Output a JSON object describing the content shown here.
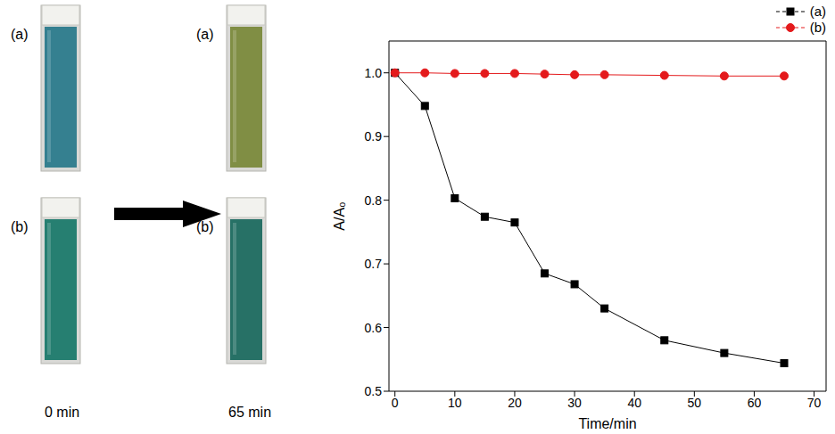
{
  "photos": {
    "panels": [
      {
        "caption": "0 min",
        "cuvettes": [
          "(a)",
          "(b)"
        ]
      },
      {
        "caption": "65 min",
        "cuvettes": [
          "(a)",
          "(b)"
        ]
      }
    ]
  },
  "chart_data": {
    "type": "line",
    "xlabel": "Time/min",
    "ylabel": "A/A₀",
    "x": [
      0,
      5,
      10,
      15,
      20,
      25,
      30,
      35,
      45,
      55,
      65
    ],
    "series": [
      {
        "name": "(a)",
        "color": "#000000",
        "marker": "square",
        "line_style": "solid",
        "values": [
          1.0,
          0.948,
          0.803,
          0.774,
          0.765,
          0.685,
          0.668,
          0.63,
          0.58,
          0.56,
          0.544
        ]
      },
      {
        "name": "(b)",
        "color": "#e41a1c",
        "marker": "circle",
        "line_style": "solid",
        "values": [
          1.0,
          1.0,
          0.999,
          0.999,
          0.999,
          0.998,
          0.997,
          0.997,
          0.996,
          0.995,
          0.995
        ]
      }
    ],
    "xlim": [
      -1,
      72
    ],
    "xticks": [
      0,
      10,
      20,
      30,
      40,
      50,
      60,
      70
    ],
    "ylim": [
      0.5,
      1.05
    ],
    "yticks": [
      0.5,
      0.6,
      0.7,
      0.8,
      0.9,
      {
        "value": 1,
        "label": "1.0"
      }
    ],
    "legend": "upper right",
    "grid": false
  }
}
